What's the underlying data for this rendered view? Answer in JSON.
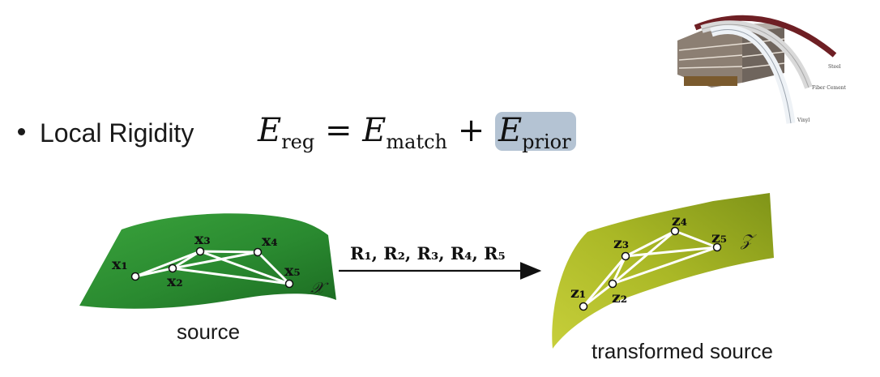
{
  "bullet": {
    "label": "Local Rigidity"
  },
  "equation": {
    "lhs": "E",
    "lhs_sub": "reg",
    "eq": " = ",
    "t1": "E",
    "t1_sub": "match",
    "plus": " + ",
    "t2": "E",
    "t2_sub": "prior"
  },
  "arrow_label": "R₁, R₂, R₃, R₄, R₅",
  "source": {
    "caption": "source",
    "set_label": "𝒳",
    "points": [
      "x₁",
      "x₂",
      "x₃",
      "x₄",
      "x₅"
    ]
  },
  "target": {
    "caption": "transformed source",
    "set_label": "𝒵",
    "points": [
      "z₁",
      "z₂",
      "z₃",
      "z₄",
      "z₅"
    ]
  },
  "photo": {
    "labels": [
      "Steel",
      "Fiber Cement",
      "Vinyl"
    ]
  },
  "colors": {
    "highlight": "#b4c3d3",
    "source_surface": "#2e8f33",
    "target_surface": "#a6b621"
  }
}
